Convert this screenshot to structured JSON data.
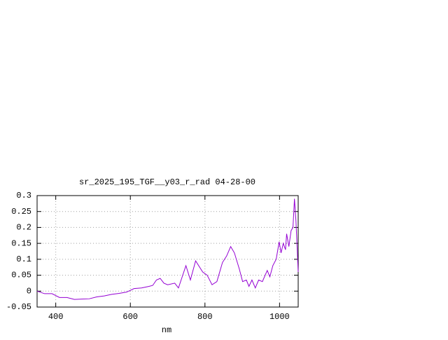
{
  "chart_data": {
    "type": "line",
    "title": "sr_2025_195_TGF__y03_r_rad 04-28-00",
    "x_label": "nm",
    "xlim": [
      350,
      1050
    ],
    "xticks": [
      400,
      600,
      800,
      1000
    ],
    "ylim": [
      -0.05,
      0.3
    ],
    "yticks": [
      -0.05,
      0,
      0.05,
      0.1,
      0.15,
      0.2,
      0.25,
      0.3
    ],
    "grid": true,
    "x": [
      350,
      370,
      390,
      410,
      430,
      450,
      470,
      490,
      510,
      530,
      550,
      570,
      590,
      610,
      630,
      650,
      660,
      670,
      680,
      690,
      700,
      719,
      729,
      749,
      761,
      775,
      794,
      806,
      819,
      832,
      847,
      858,
      869,
      879,
      892,
      901,
      911,
      918,
      926,
      935,
      944,
      954,
      967,
      974,
      982,
      991,
      999,
      1004,
      1010,
      1016,
      1019,
      1025,
      1031,
      1036,
      1040,
      1044,
      1050
    ],
    "series": [
      {
        "color": "#9400d3",
        "values": [
          0,
          -0.008,
          -0.008,
          -0.02,
          -0.02,
          -0.026,
          -0.025,
          -0.024,
          -0.018,
          -0.015,
          -0.01,
          -0.007,
          -0.003,
          0.008,
          0.01,
          0.015,
          0.018,
          0.035,
          0.04,
          0.025,
          0.02,
          0.025,
          0.01,
          0.08,
          0.035,
          0.095,
          0.06,
          0.05,
          0.02,
          0.03,
          0.09,
          0.11,
          0.14,
          0.12,
          0.07,
          0.03,
          0.035,
          0.015,
          0.035,
          0.01,
          0.035,
          0.03,
          0.065,
          0.045,
          0.08,
          0.1,
          0.155,
          0.12,
          0.15,
          0.13,
          0.18,
          0.14,
          0.19,
          0.2,
          0.29,
          0.22,
          0.06
        ]
      }
    ]
  }
}
